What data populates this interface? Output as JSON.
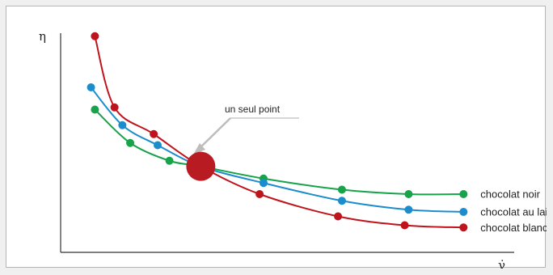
{
  "chart_data": {
    "type": "line",
    "title": "",
    "xlabel": "γ̇",
    "ylabel": "η",
    "xlim": [
      0,
      10
    ],
    "ylim": [
      0,
      10
    ],
    "grid": false,
    "legend": "right, at line ends",
    "series": [
      {
        "name": "chocolat noir",
        "color": "#16a34a",
        "x": [
          0.4,
          1.3,
          2.3,
          3.1,
          4.7,
          6.7,
          8.4,
          9.8
        ],
        "y": [
          6.2,
          4.7,
          3.9,
          3.65,
          3.1,
          2.6,
          2.4,
          2.4
        ]
      },
      {
        "name": "chocolat au lait",
        "color": "#1b8ccc",
        "x": [
          0.3,
          1.1,
          2.0,
          3.1,
          4.7,
          6.7,
          8.4,
          9.8
        ],
        "y": [
          7.2,
          5.5,
          4.6,
          3.65,
          2.9,
          2.1,
          1.7,
          1.6
        ]
      },
      {
        "name": "chocolat blanc",
        "color": "#c0141c",
        "x": [
          0.4,
          0.9,
          1.9,
          3.1,
          4.6,
          6.6,
          8.3,
          9.8
        ],
        "y": [
          9.5,
          6.3,
          5.1,
          3.65,
          2.4,
          1.4,
          1.0,
          0.9
        ]
      }
    ],
    "annotation": {
      "text": "un seul point",
      "x": 3.1,
      "y": 3.65,
      "color": "#b81c22"
    }
  }
}
